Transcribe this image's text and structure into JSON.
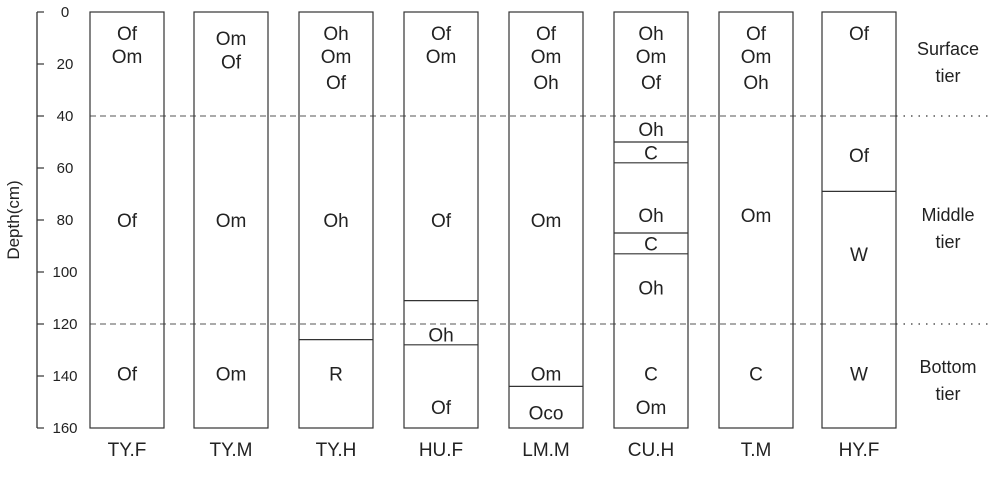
{
  "axis": {
    "title": "Depth(cm)",
    "min": 0,
    "max": 160,
    "ticks": [
      "0",
      "20",
      "40",
      "60",
      "80",
      "100",
      "120",
      "140",
      "160"
    ]
  },
  "tiers": [
    {
      "lines": [
        "Surface",
        "tier"
      ],
      "depth_from": 0,
      "depth_to": 40
    },
    {
      "lines": [
        "Middle",
        "tier"
      ],
      "depth_from": 40,
      "depth_to": 120
    },
    {
      "lines": [
        "Bottom",
        "tier"
      ],
      "depth_from": 120,
      "depth_to": 160
    }
  ],
  "tier_boundaries": [
    40,
    120
  ],
  "columns": [
    {
      "name": "TY.F",
      "dividers": [],
      "labels": [
        {
          "depth": 8,
          "text": "Of"
        },
        {
          "depth": 17,
          "text": "Om"
        },
        {
          "depth": 80,
          "text": "Of"
        },
        {
          "depth": 139,
          "text": "Of"
        }
      ]
    },
    {
      "name": "TY.M",
      "dividers": [],
      "labels": [
        {
          "depth": 10,
          "text": "Om"
        },
        {
          "depth": 19,
          "text": "Of"
        },
        {
          "depth": 80,
          "text": "Om"
        },
        {
          "depth": 139,
          "text": "Om"
        }
      ]
    },
    {
      "name": "TY.H",
      "dividers": [
        126
      ],
      "labels": [
        {
          "depth": 8,
          "text": "Oh"
        },
        {
          "depth": 17,
          "text": "Om"
        },
        {
          "depth": 27,
          "text": "Of"
        },
        {
          "depth": 80,
          "text": "Oh"
        },
        {
          "depth": 139,
          "text": "R"
        }
      ]
    },
    {
      "name": "HU.F",
      "dividers": [
        111,
        128
      ],
      "labels": [
        {
          "depth": 8,
          "text": "Of"
        },
        {
          "depth": 17,
          "text": "Om"
        },
        {
          "depth": 80,
          "text": "Of"
        },
        {
          "depth": 124,
          "text": "Oh"
        },
        {
          "depth": 152,
          "text": "Of"
        }
      ]
    },
    {
      "name": "LM.M",
      "dividers": [
        144
      ],
      "labels": [
        {
          "depth": 8,
          "text": "Of"
        },
        {
          "depth": 17,
          "text": "Om"
        },
        {
          "depth": 27,
          "text": "Oh"
        },
        {
          "depth": 80,
          "text": "Om"
        },
        {
          "depth": 139,
          "text": "Om"
        },
        {
          "depth": 154,
          "text": "Oco"
        }
      ]
    },
    {
      "name": "CU.H",
      "dividers": [
        50,
        58,
        85,
        93
      ],
      "labels": [
        {
          "depth": 8,
          "text": "Oh"
        },
        {
          "depth": 17,
          "text": "Om"
        },
        {
          "depth": 27,
          "text": "Of"
        },
        {
          "depth": 45,
          "text": "Oh"
        },
        {
          "depth": 54,
          "text": "C"
        },
        {
          "depth": 78,
          "text": "Oh"
        },
        {
          "depth": 89,
          "text": "C"
        },
        {
          "depth": 106,
          "text": "Oh"
        },
        {
          "depth": 139,
          "text": "C"
        },
        {
          "depth": 152,
          "text": "Om"
        }
      ]
    },
    {
      "name": "T.M",
      "dividers": [],
      "labels": [
        {
          "depth": 8,
          "text": "Of"
        },
        {
          "depth": 17,
          "text": "Om"
        },
        {
          "depth": 27,
          "text": "Oh"
        },
        {
          "depth": 78,
          "text": "Om"
        },
        {
          "depth": 139,
          "text": "C"
        }
      ]
    },
    {
      "name": "HY.F",
      "dividers": [
        69
      ],
      "labels": [
        {
          "depth": 8,
          "text": "Of"
        },
        {
          "depth": 55,
          "text": "Of"
        },
        {
          "depth": 93,
          "text": "W"
        },
        {
          "depth": 139,
          "text": "W"
        }
      ]
    }
  ]
}
